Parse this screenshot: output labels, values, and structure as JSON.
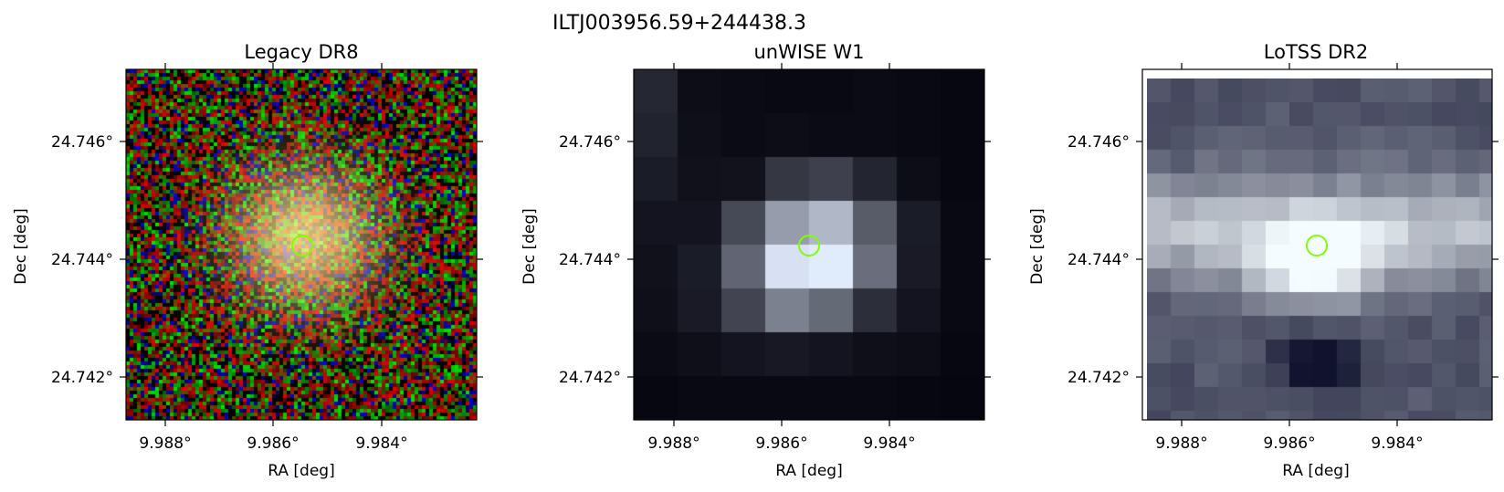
{
  "figure": {
    "title": "ILTJ003956.59+244438.3"
  },
  "panels": [
    {
      "id": "legacy",
      "title": "Legacy DR8",
      "xlabel": "RA [deg]",
      "ylabel": "Dec [deg]",
      "xticks": [
        "9.988°",
        "9.986°",
        "9.984°"
      ],
      "yticks": [
        "24.746°",
        "24.744°",
        "24.742°"
      ],
      "image": "rgb-optical-cutout",
      "marker_color": "#7fff00"
    },
    {
      "id": "unwise",
      "title": "unWISE W1",
      "xlabel": "RA [deg]",
      "ylabel": "Dec [deg]",
      "xticks": [
        "9.988°",
        "9.986°",
        "9.984°"
      ],
      "yticks": [
        "24.746°",
        "24.744°",
        "24.742°"
      ],
      "image": "grayscale-infrared-cutout",
      "marker_color": "#7fff00"
    },
    {
      "id": "lotss",
      "title": "LoTSS DR2",
      "xlabel": "RA [deg]",
      "ylabel": "Dec [deg]",
      "xticks": [
        "9.988°",
        "9.986°",
        "9.984°"
      ],
      "yticks": [
        "24.746°",
        "24.744°",
        "24.742°"
      ],
      "image": "bone-radio-cutout",
      "marker_color": "#7fff00"
    }
  ]
}
